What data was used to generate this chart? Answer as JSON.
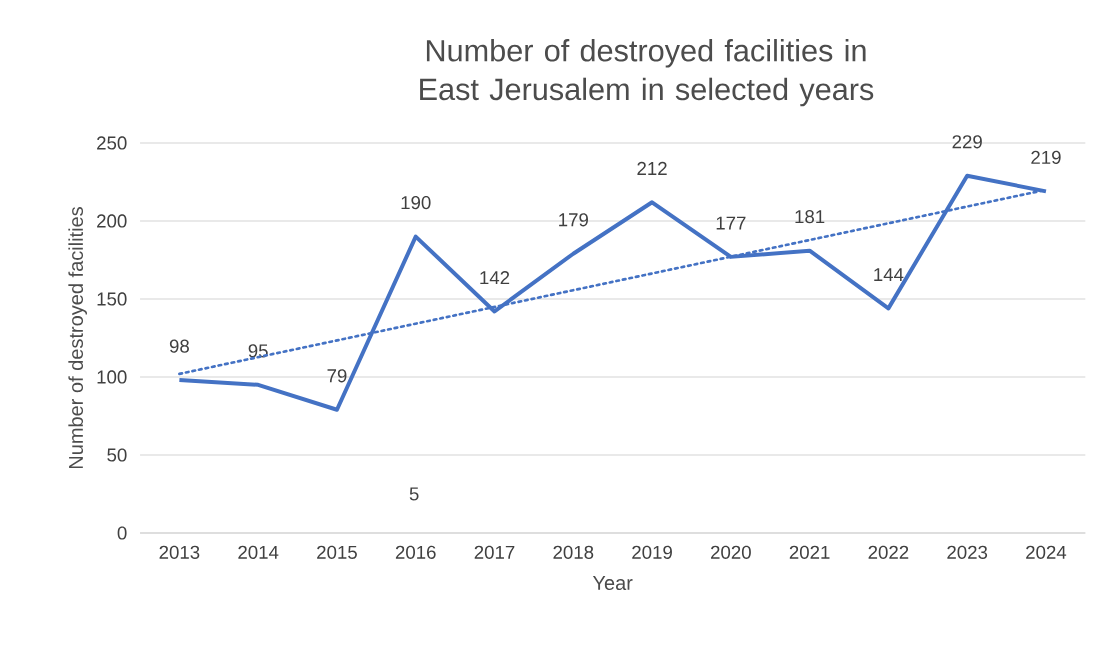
{
  "chart_data": {
    "type": "line",
    "title": "Number of destroyed facilities in East Jerusalem in selected years",
    "xlabel": "Year",
    "ylabel": "Number of destroyed facilities",
    "x": [
      2013,
      2014,
      2015,
      2016,
      2017,
      2018,
      2019,
      2020,
      2021,
      2022,
      2023,
      2024
    ],
    "series": [
      {
        "color": "#4472c4",
        "values": [
          98,
          95,
          79,
          190,
          142,
          179,
          212,
          177,
          181,
          144,
          229,
          219
        ],
        "data_labels": true
      },
      {
        "type": "line",
        "color": "#4472c4",
        "line_style": "dotted",
        "x": [
          2013,
          2024
        ],
        "values": [
          102,
          220
        ]
      }
    ],
    "xlim": [
      2012.5,
      2024.5
    ],
    "xticks": [
      2013,
      2014,
      2015,
      2016,
      2017,
      2018,
      2019,
      2020,
      2021,
      2022,
      2023,
      2024
    ],
    "ylim": [
      0,
      250
    ],
    "yticks": [
      0,
      50,
      100,
      150,
      200,
      250
    ],
    "grid": "y",
    "marker": "none",
    "annotations": [
      "5"
    ]
  }
}
